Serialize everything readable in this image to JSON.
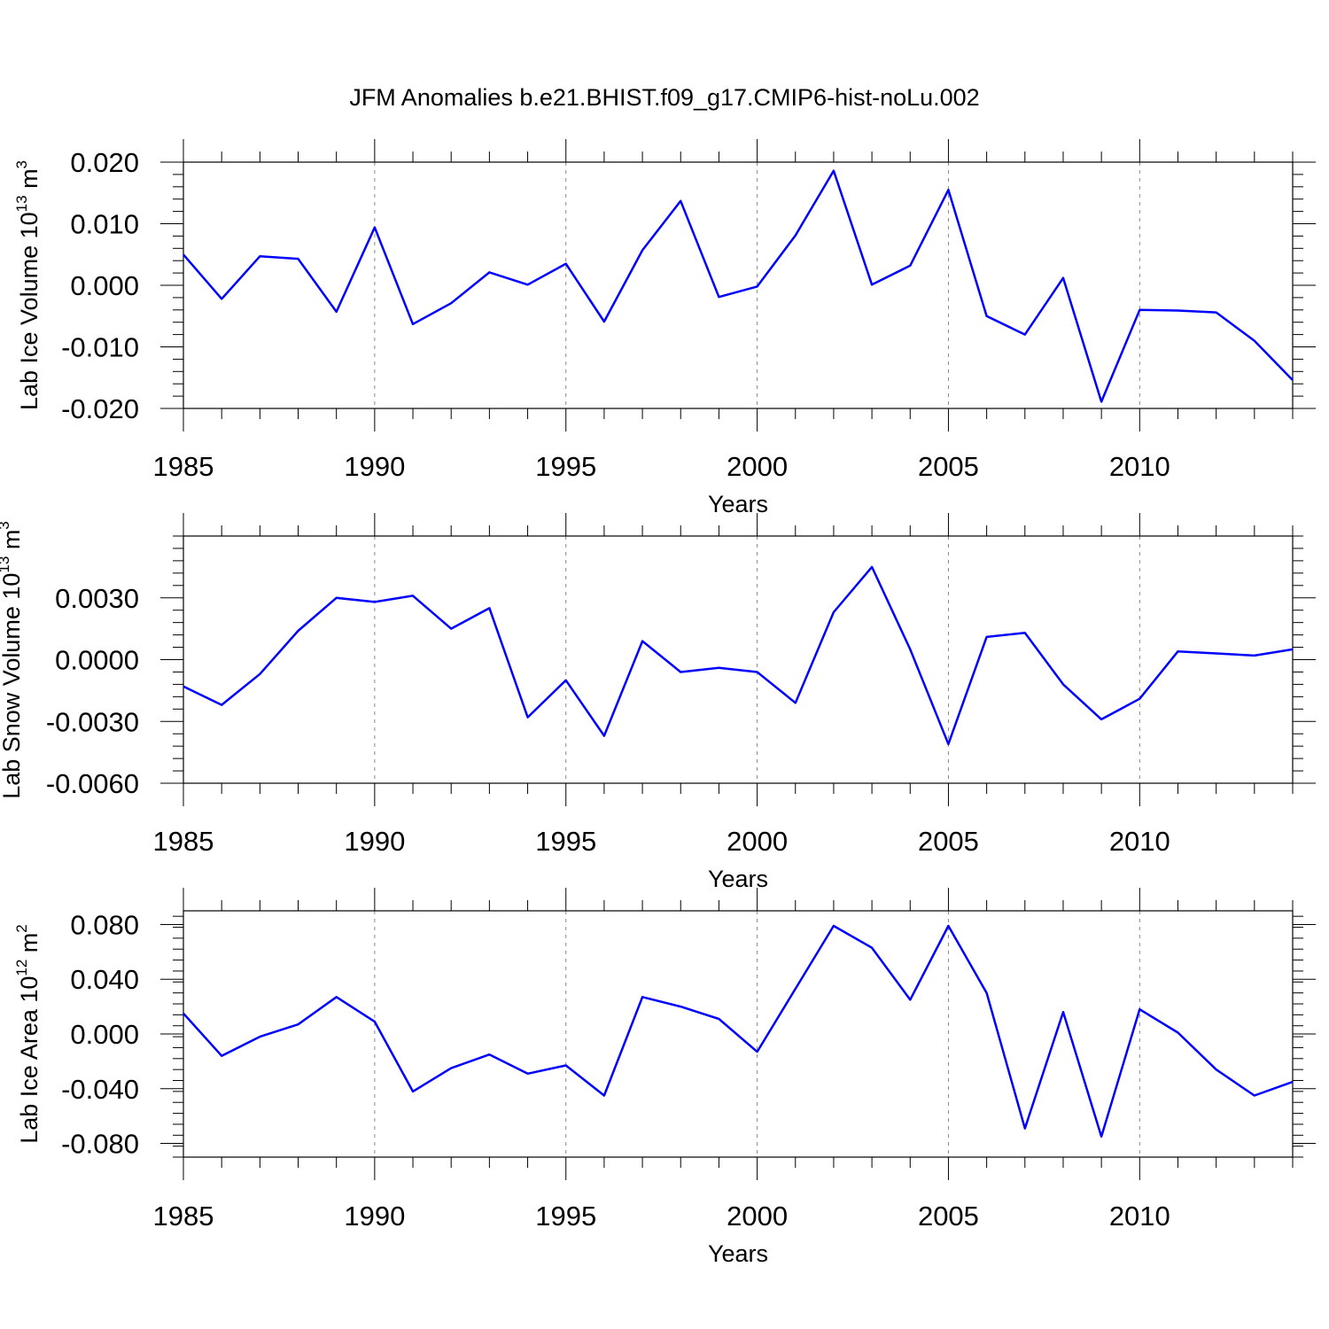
{
  "page": {
    "title": "JFM Anomalies b.e21.BHIST.f09_g17.CMIP6-hist-noLu.002"
  },
  "style": {
    "line_color": "#0000ff",
    "grid_color": "#888888",
    "axis_color": "#000000"
  },
  "chart_data": [
    {
      "type": "line",
      "name": "ice-volume",
      "ylabel_main": "Lab Ice Volume 10",
      "ylabel_exp": "13",
      "ylabel_unit": " m",
      "ylabel_unit_exp": "3",
      "xlabel": "Years",
      "xlim": [
        1985,
        2014
      ],
      "ylim": [
        -0.02,
        0.02
      ],
      "yticks": [
        -0.02,
        -0.01,
        0.0,
        0.01,
        0.02
      ],
      "ytick_labels": [
        "-0.020",
        "-0.010",
        "0.000",
        "0.010",
        "0.020"
      ],
      "xticks": [
        1985,
        1990,
        1995,
        2000,
        2005,
        2010
      ],
      "xtick_labels": [
        "1985",
        "1990",
        "1995",
        "2000",
        "2005",
        "2010"
      ],
      "grid_x": [
        1990,
        1995,
        2000,
        2005,
        2010
      ],
      "x": [
        1985,
        1986,
        1987,
        1988,
        1989,
        1990,
        1991,
        1992,
        1993,
        1994,
        1995,
        1996,
        1997,
        1998,
        1999,
        2000,
        2001,
        2002,
        2003,
        2004,
        2005,
        2006,
        2007,
        2008,
        2009,
        2010,
        2011,
        2012,
        2013,
        2014
      ],
      "y": [
        0.005,
        -0.0022,
        0.0047,
        0.0043,
        -0.0043,
        0.0094,
        -0.0063,
        -0.0029,
        0.0021,
        0.0001,
        0.0035,
        -0.0059,
        0.0057,
        0.0137,
        -0.0019,
        -0.0002,
        0.0081,
        0.0186,
        0.0001,
        0.0032,
        0.0155,
        -0.005,
        -0.008,
        0.0012,
        -0.0189,
        -0.004,
        -0.0041,
        -0.0044,
        -0.009,
        -0.0154
      ]
    },
    {
      "type": "line",
      "name": "snow-volume",
      "ylabel_main": "Lab Snow Volume 10",
      "ylabel_exp": "13",
      "ylabel_unit": " m",
      "ylabel_unit_exp": "3",
      "xlabel": "Years",
      "xlim": [
        1985,
        2014
      ],
      "ylim": [
        -0.006,
        0.006
      ],
      "yticks": [
        -0.006,
        -0.003,
        0.0,
        0.003
      ],
      "ytick_labels": [
        "-0.0060",
        "-0.0030",
        "0.0000",
        "0.0030"
      ],
      "xticks": [
        1985,
        1990,
        1995,
        2000,
        2005,
        2010
      ],
      "xtick_labels": [
        "1985",
        "1990",
        "1995",
        "2000",
        "2005",
        "2010"
      ],
      "grid_x": [
        1990,
        1995,
        2000,
        2005,
        2010
      ],
      "x": [
        1985,
        1986,
        1987,
        1988,
        1989,
        1990,
        1991,
        1992,
        1993,
        1994,
        1995,
        1996,
        1997,
        1998,
        1999,
        2000,
        2001,
        2002,
        2003,
        2004,
        2005,
        2006,
        2007,
        2008,
        2009,
        2010,
        2011,
        2012,
        2013,
        2014
      ],
      "y": [
        -0.0013,
        -0.0022,
        -0.0007,
        0.0014,
        0.003,
        0.0028,
        0.0031,
        0.0015,
        0.0025,
        -0.0028,
        -0.001,
        -0.0037,
        0.0009,
        -0.0006,
        -0.0004,
        -0.0006,
        -0.0021,
        0.0023,
        0.0045,
        0.0005,
        -0.0041,
        0.0011,
        0.0013,
        -0.0012,
        -0.0029,
        -0.0019,
        0.0004,
        0.0003,
        0.0002,
        0.0005
      ]
    },
    {
      "type": "line",
      "name": "ice-area",
      "ylabel_main": "Lab Ice Area 10",
      "ylabel_exp": "12",
      "ylabel_unit": " m",
      "ylabel_unit_exp": "2",
      "xlabel": "Years",
      "xlim": [
        1985,
        2014
      ],
      "ylim": [
        -0.09,
        0.09
      ],
      "yticks": [
        -0.08,
        -0.04,
        0.0,
        0.04,
        0.08
      ],
      "ytick_labels": [
        "-0.080",
        "-0.040",
        "0.000",
        "0.040",
        "0.080"
      ],
      "xticks": [
        1985,
        1990,
        1995,
        2000,
        2005,
        2010
      ],
      "xtick_labels": [
        "1985",
        "1990",
        "1995",
        "2000",
        "2005",
        "2010"
      ],
      "grid_x": [
        1990,
        1995,
        2000,
        2005,
        2010
      ],
      "x": [
        1985,
        1986,
        1987,
        1988,
        1989,
        1990,
        1991,
        1992,
        1993,
        1994,
        1995,
        1996,
        1997,
        1998,
        1999,
        2000,
        2001,
        2002,
        2003,
        2004,
        2005,
        2006,
        2007,
        2008,
        2009,
        2010,
        2011,
        2012,
        2013,
        2014
      ],
      "y": [
        0.015,
        -0.016,
        -0.002,
        0.007,
        0.027,
        0.009,
        -0.042,
        -0.025,
        -0.015,
        -0.029,
        -0.023,
        -0.045,
        0.027,
        0.02,
        0.011,
        -0.013,
        0.033,
        0.079,
        0.063,
        0.025,
        0.079,
        0.03,
        -0.069,
        0.016,
        -0.075,
        0.018,
        0.001,
        -0.026,
        -0.045,
        -0.035
      ]
    }
  ]
}
